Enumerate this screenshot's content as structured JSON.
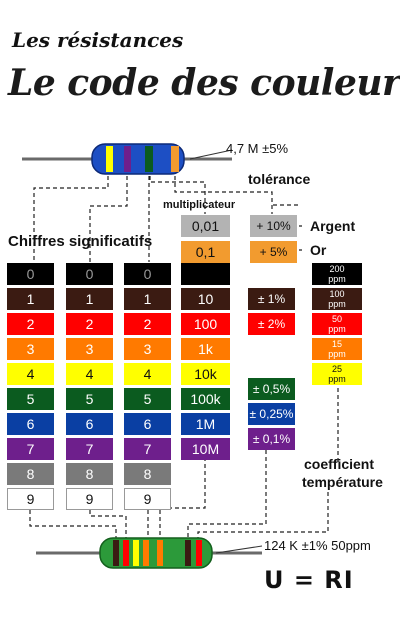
{
  "header": {
    "subtitle": "Les résistances",
    "title": "Le code des couleurs"
  },
  "top_resistor": {
    "label": "4,7 M ±5%"
  },
  "labels": {
    "tolerance": "tolérance",
    "multiplier": "multiplicateur",
    "significant_digits": "Chiffres significatifs",
    "temperature_coefficient_line1": "coefficient",
    "temperature_coefficient_line2": "température"
  },
  "digit_colors": [
    {
      "digit": "0",
      "color": "#000000"
    },
    {
      "digit": "1",
      "color": "#3b1b12"
    },
    {
      "digit": "2",
      "color": "#ff0000"
    },
    {
      "digit": "3",
      "color": "#ff7a00"
    },
    {
      "digit": "4",
      "color": "#ffff00"
    },
    {
      "digit": "5",
      "color": "#0b5b1f"
    },
    {
      "digit": "6",
      "color": "#0a3fa3"
    },
    {
      "digit": "7",
      "color": "#6e1f8c"
    },
    {
      "digit": "8",
      "color": "#7a7a7a"
    },
    {
      "digit": "9",
      "color": "#ffffff"
    }
  ],
  "multiplier_special": [
    {
      "value": "0,01",
      "color": "#b3b3b3"
    },
    {
      "value": "0,1",
      "color": "#f29b2f"
    }
  ],
  "multiplier_values": [
    "",
    "10",
    "100",
    "1k",
    "10k",
    "100k",
    "1M",
    "10M"
  ],
  "tolerance_special": [
    {
      "value": "+ 10%",
      "name": "Argent",
      "color": "#b3b3b3"
    },
    {
      "value": "+ 5%",
      "name": "Or",
      "color": "#f29b2f"
    }
  ],
  "tolerance_values": [
    {
      "value": "± 1%",
      "color": "#3b1b12"
    },
    {
      "value": "± 2%",
      "color": "#ff0000"
    },
    {
      "value": "± 0,5%",
      "color": "#0b5b1f"
    },
    {
      "value": "± 0,25%",
      "color": "#0a3fa3"
    },
    {
      "value": "± 0,1%",
      "color": "#6e1f8c"
    }
  ],
  "temp_coefficients": [
    {
      "value": "200",
      "unit": "ppm",
      "color": "#000000"
    },
    {
      "value": "100",
      "unit": "ppm",
      "color": "#3b1b12"
    },
    {
      "value": "50",
      "unit": "ppm",
      "color": "#ff0000"
    },
    {
      "value": "15",
      "unit": "ppm",
      "color": "#ff7a00"
    },
    {
      "value": "25",
      "unit": "ppm",
      "color": "#ffff00"
    }
  ],
  "bottom_resistor": {
    "label": "124 K ±1% 50ppm"
  },
  "formula": "U = RI"
}
